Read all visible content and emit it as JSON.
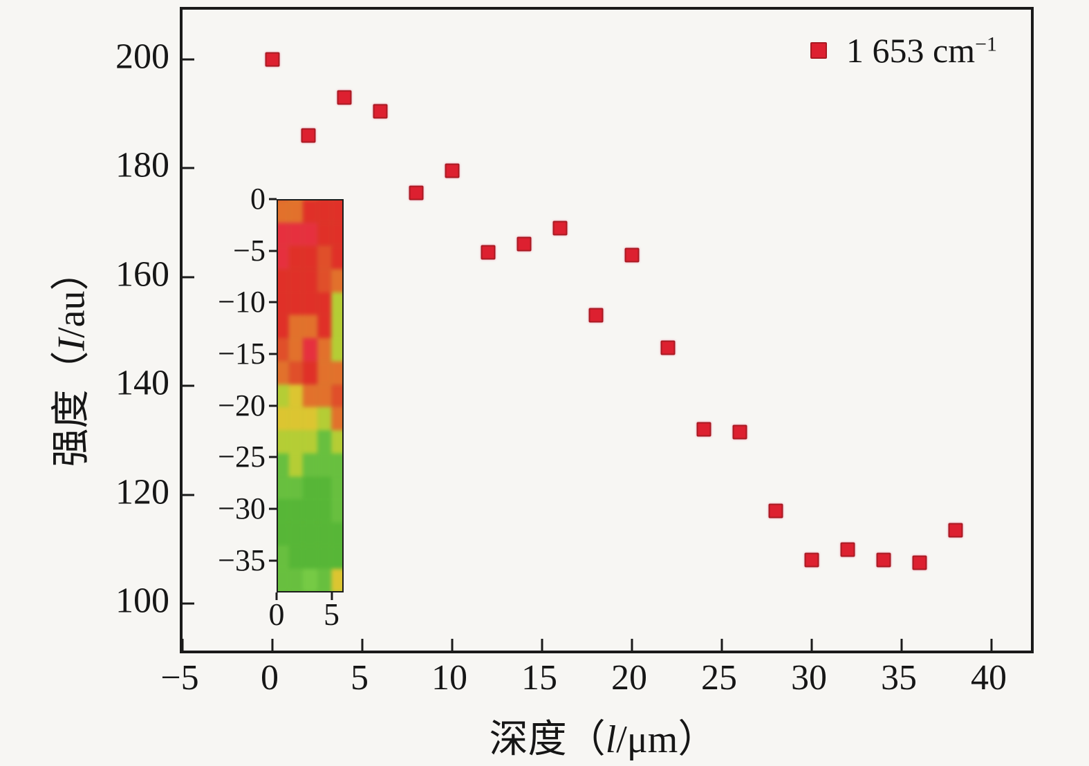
{
  "chart_data": {
    "type": "scatter",
    "title": "",
    "grid": false,
    "legend_position": "top-right",
    "legend": {
      "label_main": "1 653 cm",
      "label_sup": "−1",
      "marker": "red-square"
    },
    "xlabel_parts": {
      "prefix": "深度（",
      "symbol": "l",
      "suffix": "/μm）"
    },
    "ylabel_parts": {
      "prefix": "强度（",
      "symbol": "I",
      "suffix": "/au）"
    },
    "x_range": [
      -5,
      42.5
    ],
    "y_range": [
      90.4,
      209.1
    ],
    "x_ticks": [
      -5,
      0,
      5,
      10,
      15,
      20,
      25,
      30,
      35,
      40
    ],
    "y_ticks": [
      100,
      120,
      140,
      160,
      180,
      200
    ],
    "series": [
      {
        "name": "1 653 cm−1",
        "x": [
          0,
          2,
          4,
          6,
          8,
          10,
          12,
          14,
          16,
          18,
          20,
          22,
          24,
          26,
          28,
          30,
          32,
          34,
          36,
          38
        ],
        "y": [
          200,
          186,
          193,
          190.5,
          175.5,
          179.5,
          164.5,
          166,
          169,
          153,
          164,
          147,
          132,
          131.5,
          117,
          108,
          110,
          108,
          107.5,
          113.5
        ]
      }
    ],
    "colors": {
      "marker_fill": "#dd2030",
      "marker_edge": "#a81a22",
      "axis": "#1a1a1a",
      "background": "#f7f6f3"
    },
    "inset": {
      "type": "heatmap",
      "x_range": [
        0,
        6.1
      ],
      "y_range": [
        0,
        -38.1
      ],
      "x_ticks": [
        0,
        5
      ],
      "y_ticks": [
        0,
        -5,
        -10,
        -15,
        -20,
        -25,
        -30,
        -35
      ],
      "rows": 19,
      "cols": 5,
      "grid": [
        [
          "#e04f2a",
          "#e2712c",
          "#e04f2a",
          "#e03028",
          "#e03028"
        ],
        [
          "#e2712c",
          "#e2712c",
          "#e03028",
          "#e03028",
          "#e03028"
        ],
        [
          "#e6303e",
          "#e6303e",
          "#e6303e",
          "#e03028",
          "#e03028"
        ],
        [
          "#e6303e",
          "#e03028",
          "#e03028",
          "#e04f2a",
          "#e03028"
        ],
        [
          "#e03028",
          "#e03028",
          "#e03028",
          "#e04f2a",
          "#e2712c"
        ],
        [
          "#e03028",
          "#e03028",
          "#e03028",
          "#e03028",
          "#b5cd35"
        ],
        [
          "#e03028",
          "#e2712c",
          "#e2712c",
          "#e03028",
          "#b5cd35"
        ],
        [
          "#e04f2a",
          "#e2712c",
          "#e6303e",
          "#e2712c",
          "#b5cd35"
        ],
        [
          "#e2712c",
          "#e04f2a",
          "#e03028",
          "#e2712c",
          "#e2712c"
        ],
        [
          "#b5cd35",
          "#dcc531",
          "#e2712c",
          "#e2712c",
          "#e04f2a"
        ],
        [
          "#dcc531",
          "#dcc531",
          "#dcc531",
          "#b5cd35",
          "#e2712c"
        ],
        [
          "#b5cd35",
          "#b5cd35",
          "#b5cd35",
          "#68bf3f",
          "#b5cd35"
        ],
        [
          "#68bf3f",
          "#b5cd35",
          "#68bf3f",
          "#68bf3f",
          "#68bf3f"
        ],
        [
          "#68bf3f",
          "#68bf3f",
          "#57b637",
          "#57b637",
          "#68bf3f"
        ],
        [
          "#57b637",
          "#57b637",
          "#57b637",
          "#57b637",
          "#68bf3f"
        ],
        [
          "#57b637",
          "#57b637",
          "#57b637",
          "#57b637",
          "#57b637"
        ],
        [
          "#68bf3f",
          "#57b637",
          "#57b637",
          "#57b637",
          "#57b637"
        ],
        [
          "#68bf3f",
          "#68bf3f",
          "#76ca45",
          "#68bf3f",
          "#dcc531"
        ],
        [
          "#68bf3f",
          "#68bf3f",
          "#68bf3f",
          "#68bf3f",
          "#b5cd35"
        ]
      ]
    }
  }
}
